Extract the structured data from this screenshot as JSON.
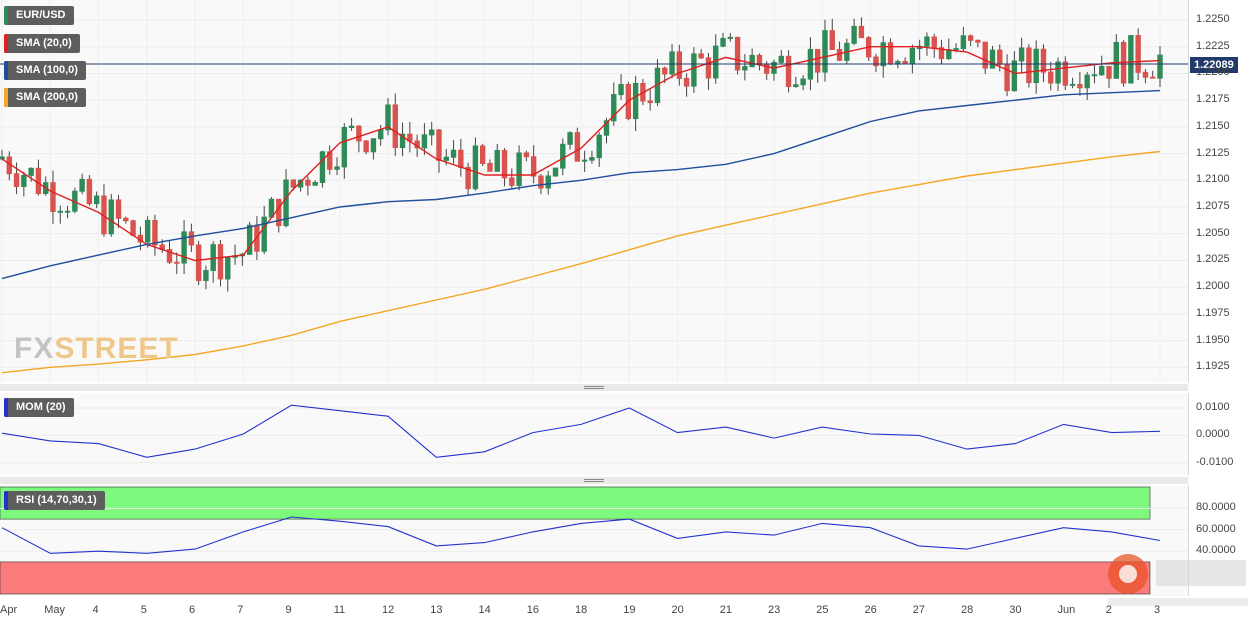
{
  "symbol": "EUR/USD",
  "last_price": "1.22089",
  "logo_text": {
    "fx": "FX",
    "street": "STREET"
  },
  "indicators": {
    "sma20": {
      "label": "SMA (20,0)",
      "color": "#e02020"
    },
    "sma100": {
      "label": "SMA (100,0)",
      "color": "#1f4e9b"
    },
    "sma200": {
      "label": "SMA (200,0)",
      "color": "#f5a623"
    },
    "mom": {
      "label": "MOM (20)",
      "color": "#2233cc"
    },
    "rsi": {
      "label": "RSI (14,70,30,1)",
      "color": "#2233cc"
    }
  },
  "colors": {
    "bull": "#2e8b57",
    "bear": "#d9534f",
    "overbought": "#7dfa7d",
    "oversold": "#fb7a7a"
  },
  "price_ticks": [
    "1.2250",
    "1.2225",
    "1.2200",
    "1.2175",
    "1.2150",
    "1.2125",
    "1.2100",
    "1.2075",
    "1.2050",
    "1.2025",
    "1.2000",
    "1.1975",
    "1.1950",
    "1.1925"
  ],
  "mom_ticks": [
    "0.0100",
    "0.0000",
    "-0.0100"
  ],
  "rsi_ticks": [
    "80.0000",
    "60.0000",
    "40.0000"
  ],
  "x_labels": [
    "Apr",
    "May",
    "4",
    "5",
    "6",
    "7",
    "9",
    "11",
    "12",
    "13",
    "14",
    "16",
    "18",
    "19",
    "20",
    "21",
    "23",
    "25",
    "26",
    "27",
    "28",
    "30",
    "Jun",
    "2",
    "3"
  ],
  "chart_data": {
    "type": "line",
    "title": "EUR/USD",
    "x": [
      "Apr",
      "May",
      "4",
      "5",
      "6",
      "7",
      "9",
      "11",
      "12",
      "13",
      "14",
      "16",
      "18",
      "19",
      "20",
      "21",
      "23",
      "25",
      "26",
      "27",
      "28",
      "30",
      "Jun",
      "2",
      "3"
    ],
    "ylim": [
      1.1915,
      1.2265
    ],
    "series": [
      {
        "name": "SMA (20,0)",
        "values": [
          1.212,
          1.209,
          1.207,
          1.204,
          1.2025,
          1.203,
          1.209,
          1.2135,
          1.215,
          1.212,
          1.2105,
          1.2105,
          1.213,
          1.2175,
          1.22,
          1.2215,
          1.2205,
          1.2215,
          1.2225,
          1.2225,
          1.222,
          1.22,
          1.2205,
          1.221,
          1.2212
        ]
      },
      {
        "name": "SMA (100,0)",
        "values": [
          1.2008,
          1.202,
          1.203,
          1.204,
          1.2048,
          1.2055,
          1.2065,
          1.2075,
          1.208,
          1.2082,
          1.2088,
          1.2095,
          1.21,
          1.2107,
          1.211,
          1.2115,
          1.2125,
          1.214,
          1.2155,
          1.2165,
          1.217,
          1.2175,
          1.218,
          1.2182,
          1.2184
        ]
      },
      {
        "name": "SMA (200,0)",
        "values": [
          1.192,
          1.1925,
          1.1928,
          1.1932,
          1.1937,
          1.1945,
          1.1955,
          1.1968,
          1.1978,
          1.1988,
          1.1998,
          1.201,
          1.2022,
          1.2035,
          1.2048,
          1.2058,
          1.2068,
          1.2078,
          1.2088,
          1.2096,
          1.2104,
          1.211,
          1.2116,
          1.2122,
          1.2127
        ]
      }
    ],
    "momentum": {
      "name": "MOM (20)",
      "ylim": [
        -0.013,
        0.014
      ],
      "values": [
        0.0008,
        -0.002,
        -0.003,
        -0.008,
        -0.005,
        0.0005,
        0.011,
        0.009,
        0.007,
        -0.008,
        -0.006,
        0.001,
        0.004,
        0.01,
        0.001,
        0.003,
        -0.001,
        0.003,
        0.0005,
        0.0,
        -0.005,
        -0.003,
        0.004,
        0.001,
        0.0015
      ]
    },
    "rsi": {
      "name": "RSI (14,70,30,1)",
      "ylim": [
        0,
        100
      ],
      "overbought": 70,
      "oversold": 30,
      "values": [
        62,
        38,
        40,
        38,
        42,
        58,
        72,
        68,
        63,
        45,
        48,
        58,
        66,
        70,
        52,
        58,
        55,
        66,
        62,
        45,
        42,
        52,
        62,
        58,
        50
      ]
    }
  }
}
